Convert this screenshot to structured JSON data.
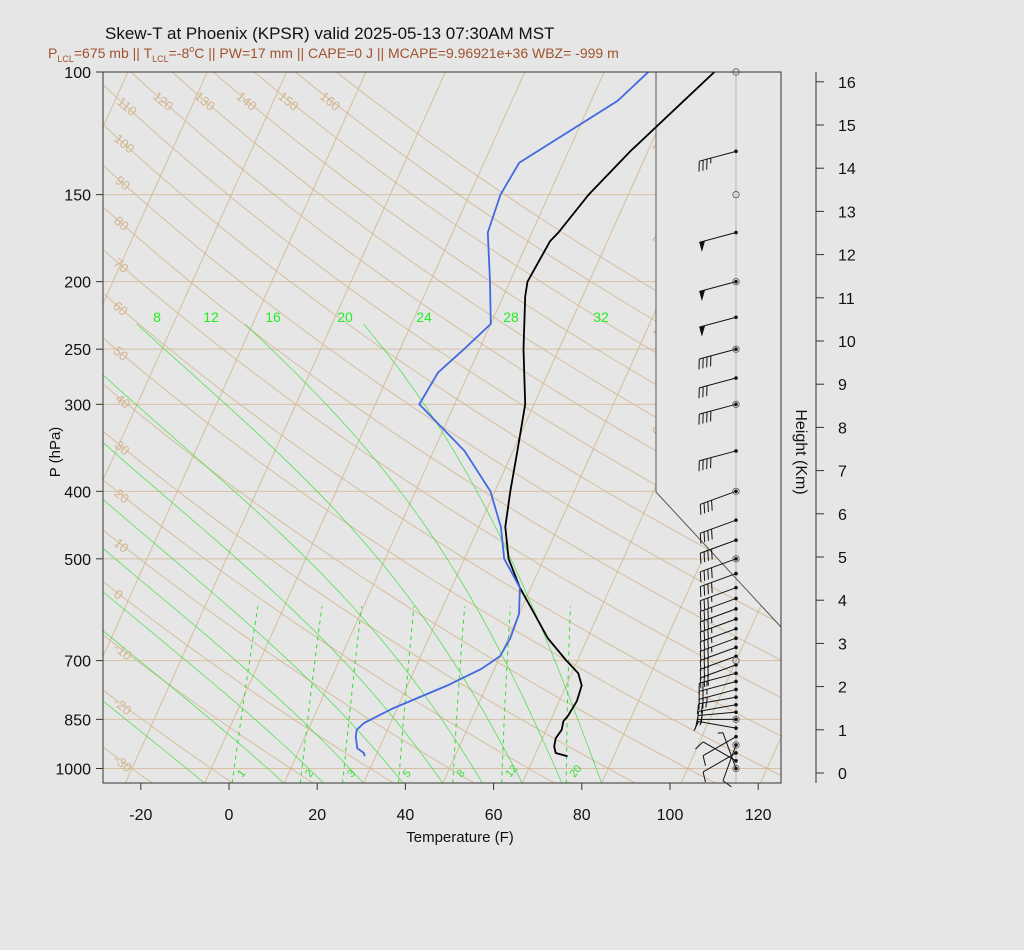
{
  "title": "Skew-T at Phoenix (KPSR) valid 2025-05-13 07:30AM MST",
  "subtitle": {
    "plcl_sym": "P",
    "plcl_sub": "LCL",
    "plcl_val": "=675 mb || ",
    "tlcl_sym": "T",
    "tlcl_sub": "LCL",
    "tlcl_val": "=-8",
    "deg": "o",
    "rest": "C || PW=17 mm || CAPE=0 J || MCAPE=9.96921e+36 WBZ= -999 m"
  },
  "colors": {
    "background": "#e6e6e6",
    "plot_bg": "#e6e6e6",
    "temperature": "#000000",
    "dewpoint": "#4169e1",
    "isotherm": "#d2b48c",
    "mixing_ratio": "#33dd33",
    "wetbulb_label": "#22ee22",
    "subtitle": "#a0522d"
  },
  "chart_data": {
    "type": "line",
    "title": "Skew-T at Phoenix (KPSR) valid 2025-05-13 07:30AM MST",
    "xlabel": "Temperature (F)",
    "ylabel": "P (hPa)",
    "y2label": "Height (Km)",
    "xlim": [
      -28,
      125
    ],
    "ylim": [
      1030,
      100
    ],
    "y_scale": "log",
    "x_ticks": [
      -20,
      0,
      20,
      40,
      60,
      80,
      100,
      120
    ],
    "p_ticks": [
      100,
      150,
      200,
      250,
      300,
      400,
      500,
      700,
      850,
      1000
    ],
    "height_ticks": [
      0,
      1,
      2,
      3,
      4,
      5,
      6,
      7,
      8,
      9,
      10,
      11,
      12,
      13,
      14,
      15,
      16
    ],
    "isotherm_labels_deg": [
      -30,
      -20,
      -10,
      0,
      10,
      20,
      30,
      40,
      50,
      60,
      70,
      80,
      90,
      100,
      110,
      120,
      130,
      140,
      150,
      160
    ],
    "mixing_ratio_labels": [
      "1",
      "2",
      "3",
      "5",
      "8",
      "12",
      "20"
    ],
    "wetbulb_labels": [
      "8",
      "12",
      "16",
      "20",
      "24",
      "28",
      "32"
    ],
    "series": [
      {
        "name": "Temperature",
        "points": [
          [
            75.5,
            960
          ],
          [
            72.5,
            950
          ],
          [
            71.5,
            930
          ],
          [
            71,
            905
          ],
          [
            71.5,
            880
          ],
          [
            71,
            855
          ],
          [
            71.5,
            840
          ],
          [
            72,
            800
          ],
          [
            71.5,
            760
          ],
          [
            69.5,
            730
          ],
          [
            65.5,
            700
          ],
          [
            59,
            650
          ],
          [
            53.5,
            600
          ],
          [
            47.5,
            550
          ],
          [
            42,
            500
          ],
          [
            38,
            450
          ],
          [
            35.5,
            400
          ],
          [
            33,
            350
          ],
          [
            30,
            300
          ],
          [
            24,
            250
          ],
          [
            19,
            210
          ],
          [
            18,
            200
          ],
          [
            19,
            175
          ],
          [
            20,
            170
          ],
          [
            23,
            150
          ],
          [
            28,
            130
          ],
          [
            35,
            110
          ],
          [
            39,
            100
          ]
        ]
      },
      {
        "name": "Dewpoint",
        "points": [
          [
            29.5,
            960
          ],
          [
            29,
            950
          ],
          [
            27,
            935
          ],
          [
            25.5,
            900
          ],
          [
            25,
            880
          ],
          [
            26,
            860
          ],
          [
            31,
            820
          ],
          [
            41,
            760
          ],
          [
            47,
            720
          ],
          [
            50,
            690
          ],
          [
            50.5,
            650
          ],
          [
            50,
            600
          ],
          [
            47.5,
            550
          ],
          [
            41,
            500
          ],
          [
            37,
            450
          ],
          [
            31,
            400
          ],
          [
            21,
            350
          ],
          [
            6,
            300
          ],
          [
            7,
            270
          ],
          [
            10.5,
            250
          ],
          [
            14,
            230
          ],
          [
            9.5,
            200
          ],
          [
            4,
            170
          ],
          [
            3,
            150
          ],
          [
            4,
            135
          ],
          [
            20,
            110
          ],
          [
            24,
            100
          ]
        ]
      }
    ],
    "wind_barbs": [
      {
        "p": 1000,
        "dir": 340,
        "kt": 5
      },
      {
        "p": 975,
        "dir": 300,
        "kt": 10
      },
      {
        "p": 950,
        "dir": 240,
        "kt": 10
      },
      {
        "p": 925,
        "dir": 200,
        "kt": 10
      },
      {
        "p": 900,
        "dir": 240,
        "kt": 10
      },
      {
        "p": 875,
        "dir": 280,
        "kt": 10
      },
      {
        "p": 850,
        "dir": 270,
        "kt": 15
      },
      {
        "p": 830,
        "dir": 265,
        "kt": 20
      },
      {
        "p": 810,
        "dir": 260,
        "kt": 20
      },
      {
        "p": 790,
        "dir": 260,
        "kt": 25
      },
      {
        "p": 770,
        "dir": 255,
        "kt": 25
      },
      {
        "p": 750,
        "dir": 255,
        "kt": 25
      },
      {
        "p": 730,
        "dir": 255,
        "kt": 25
      },
      {
        "p": 710,
        "dir": 250,
        "kt": 30
      },
      {
        "p": 690,
        "dir": 250,
        "kt": 30
      },
      {
        "p": 670,
        "dir": 250,
        "kt": 30
      },
      {
        "p": 650,
        "dir": 250,
        "kt": 35
      },
      {
        "p": 630,
        "dir": 250,
        "kt": 35
      },
      {
        "p": 610,
        "dir": 250,
        "kt": 35
      },
      {
        "p": 590,
        "dir": 250,
        "kt": 35
      },
      {
        "p": 570,
        "dir": 250,
        "kt": 35
      },
      {
        "p": 550,
        "dir": 250,
        "kt": 35
      },
      {
        "p": 525,
        "dir": 250,
        "kt": 40
      },
      {
        "p": 500,
        "dir": 250,
        "kt": 40
      },
      {
        "p": 470,
        "dir": 250,
        "kt": 40
      },
      {
        "p": 440,
        "dir": 250,
        "kt": 40
      },
      {
        "p": 400,
        "dir": 250,
        "kt": 40
      },
      {
        "p": 350,
        "dir": 255,
        "kt": 40
      },
      {
        "p": 300,
        "dir": 255,
        "kt": 40
      },
      {
        "p": 275,
        "dir": 255,
        "kt": 30
      },
      {
        "p": 250,
        "dir": 255,
        "kt": 40
      },
      {
        "p": 225,
        "dir": 255,
        "kt": 50
      },
      {
        "p": 200,
        "dir": 255,
        "kt": 50
      },
      {
        "p": 170,
        "dir": 255,
        "kt": 50
      },
      {
        "p": 130,
        "dir": 255,
        "kt": 35
      }
    ]
  }
}
